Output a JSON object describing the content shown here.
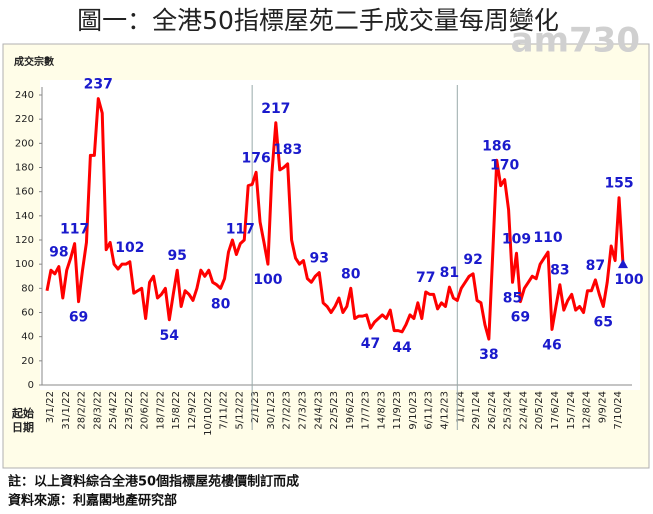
{
  "chart_data": {
    "type": "line",
    "title": "圖一：全港50指標屋苑二手成交量每周變化",
    "watermark": "am730",
    "y_label": "成交宗數",
    "x_label_lines": [
      "起始",
      "日期"
    ],
    "notes": [
      "註：以上資料綜合全港50個指標屋苑樓價制訂而成",
      "資料來源：利嘉閣地產研究部"
    ],
    "categories": [
      "3/1/22",
      null,
      null,
      null,
      "31/1/22",
      null,
      null,
      null,
      "28/2/22",
      null,
      null,
      null,
      "28/3/22",
      null,
      null,
      null,
      "25/4/22",
      null,
      null,
      null,
      "23/5/22",
      null,
      null,
      null,
      "20/6/22",
      null,
      null,
      null,
      "18/7/22",
      null,
      null,
      null,
      "15/8/22",
      null,
      null,
      null,
      "12/9/22",
      null,
      null,
      null,
      "10/10/22",
      null,
      null,
      null,
      "7/11/22",
      null,
      null,
      null,
      "5/12/22",
      null,
      null,
      null,
      "2/1/23",
      null,
      null,
      null,
      "30/1/23",
      null,
      null,
      null,
      "27/2/23",
      null,
      null,
      null,
      "27/3/23",
      null,
      null,
      null,
      "24/4/23",
      null,
      null,
      null,
      "22/5/23",
      null,
      null,
      null,
      "19/6/23",
      null,
      null,
      null,
      "17/7/23",
      null,
      null,
      null,
      "14/8/23",
      null,
      null,
      null,
      "11/9/23",
      null,
      null,
      null,
      "9/10/23",
      null,
      null,
      null,
      "6/11/23",
      null,
      null,
      null,
      "4/12/23",
      null,
      null,
      null,
      "1/1/24",
      null,
      null,
      null,
      "29/1/24",
      null,
      null,
      null,
      "26/2/24",
      null,
      null,
      null,
      "25/3/24",
      null,
      null,
      null,
      "22/4/24",
      null,
      null,
      null,
      "20/5/24",
      null,
      null,
      null,
      "17/6/24",
      null,
      null,
      null,
      "15/7/24",
      null,
      null,
      null,
      "12/8/24",
      null,
      null,
      null,
      "9/9/24",
      null,
      null,
      null,
      "7/10/24",
      null,
      null
    ],
    "series": [
      {
        "color": "#ff0000",
        "label_color": "#1a1acc",
        "last_marker": "triangle",
        "values": [
          78,
          95,
          92,
          98,
          72,
          95,
          105,
          117,
          69,
          95,
          118,
          190,
          190,
          237,
          225,
          112,
          118,
          100,
          96,
          100,
          100,
          102,
          76,
          78,
          80,
          55,
          85,
          90,
          72,
          75,
          80,
          54,
          75,
          95,
          65,
          78,
          75,
          70,
          80,
          95,
          90,
          95,
          85,
          83,
          80,
          88,
          110,
          120,
          108,
          117,
          120,
          165,
          166,
          176,
          135,
          118,
          100,
          175,
          217,
          178,
          180,
          183,
          120,
          105,
          100,
          103,
          88,
          85,
          90,
          93,
          68,
          65,
          60,
          65,
          72,
          60,
          65,
          80,
          55,
          57,
          57,
          58,
          47,
          52,
          55,
          58,
          55,
          62,
          45,
          45,
          44,
          50,
          58,
          55,
          68,
          55,
          77,
          75,
          75,
          63,
          68,
          65,
          81,
          72,
          70,
          80,
          85,
          90,
          92,
          70,
          68,
          50,
          38,
          110,
          186,
          165,
          170,
          145,
          85,
          109,
          69,
          80,
          85,
          90,
          88,
          100,
          105,
          110,
          46,
          65,
          83,
          62,
          70,
          75,
          62,
          65,
          60,
          78,
          78,
          87,
          75,
          65,
          85,
          115,
          103,
          155,
          100
        ],
        "value_labels": [
          null,
          null,
          null,
          "98",
          null,
          null,
          null,
          "117",
          "69",
          null,
          null,
          null,
          null,
          "237",
          null,
          null,
          null,
          null,
          null,
          null,
          null,
          "102",
          null,
          null,
          null,
          null,
          null,
          null,
          null,
          null,
          null,
          "54",
          null,
          "95",
          null,
          null,
          null,
          null,
          null,
          null,
          null,
          null,
          null,
          null,
          "80",
          null,
          null,
          null,
          null,
          "117",
          null,
          null,
          null,
          "176",
          null,
          null,
          "100",
          null,
          "217",
          null,
          null,
          "183",
          null,
          null,
          null,
          null,
          null,
          null,
          null,
          "93",
          null,
          null,
          null,
          null,
          null,
          null,
          null,
          "80",
          null,
          null,
          null,
          null,
          "47",
          null,
          null,
          null,
          null,
          null,
          null,
          null,
          "44",
          null,
          null,
          null,
          null,
          null,
          "77",
          null,
          null,
          null,
          null,
          null,
          "81",
          null,
          null,
          null,
          null,
          null,
          "92",
          null,
          null,
          null,
          "38",
          null,
          "186",
          null,
          "170",
          null,
          "85",
          "109",
          "69",
          null,
          null,
          null,
          null,
          null,
          null,
          "110",
          "46",
          null,
          "83",
          null,
          null,
          null,
          null,
          null,
          null,
          null,
          null,
          "87",
          null,
          "65",
          null,
          null,
          null,
          "155",
          "100"
        ]
      }
    ],
    "ylim": [
      0,
      240
    ],
    "yticks": [
      0,
      20,
      40,
      60,
      80,
      100,
      120,
      140,
      160,
      180,
      200,
      220,
      240
    ],
    "grid": false
  }
}
